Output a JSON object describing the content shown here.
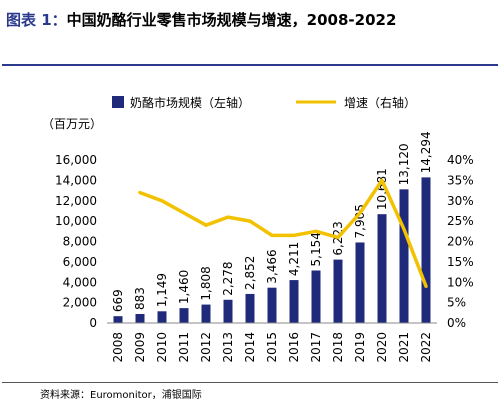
{
  "title": {
    "label": "图表 1：",
    "text": "中国奶酪行业零售市场规模与增速，2008-2022"
  },
  "source": "资料来源：Euromonitor，浦银国际",
  "chart_data": {
    "type": "bar",
    "categories": [
      "2008",
      "2009",
      "2010",
      "2011",
      "2012",
      "2013",
      "2014",
      "2015",
      "2016",
      "2017",
      "2018",
      "2019",
      "2020",
      "2021",
      "2022"
    ],
    "series": [
      {
        "name": "奶酪市场规模（左轴）",
        "type": "bar",
        "axis": "left",
        "color": "#1f2a7a",
        "values": [
          669,
          883,
          1149,
          1460,
          1808,
          2278,
          2852,
          3466,
          4211,
          5154,
          6223,
          7905,
          10681,
          13120,
          14294
        ],
        "labels": [
          "669",
          "883",
          "1,149",
          "1,460",
          "1,808",
          "2,278",
          "2,852",
          "3,466",
          "4,211",
          "5,154",
          "6,223",
          "7,905",
          "10,681",
          "13,120",
          "14,294"
        ]
      },
      {
        "name": "增速（右轴）",
        "type": "line",
        "axis": "right",
        "color": "#f2c200",
        "values": [
          null,
          32,
          30,
          27,
          24,
          26,
          25,
          21.5,
          21.5,
          22.5,
          21,
          27,
          35,
          23,
          9
        ]
      }
    ],
    "ylabel": "（百万元）",
    "ylim": [
      0,
      16000
    ],
    "yticks": [
      "0",
      "2,000",
      "4,000",
      "6,000",
      "8,000",
      "10,000",
      "12,000",
      "14,000",
      "16,000"
    ],
    "y2lim": [
      0,
      40
    ],
    "y2ticks": [
      "0%",
      "5%",
      "10%",
      "15%",
      "20%",
      "25%",
      "30%",
      "35%",
      "40%"
    ],
    "legend_position": "top",
    "grid": false
  }
}
